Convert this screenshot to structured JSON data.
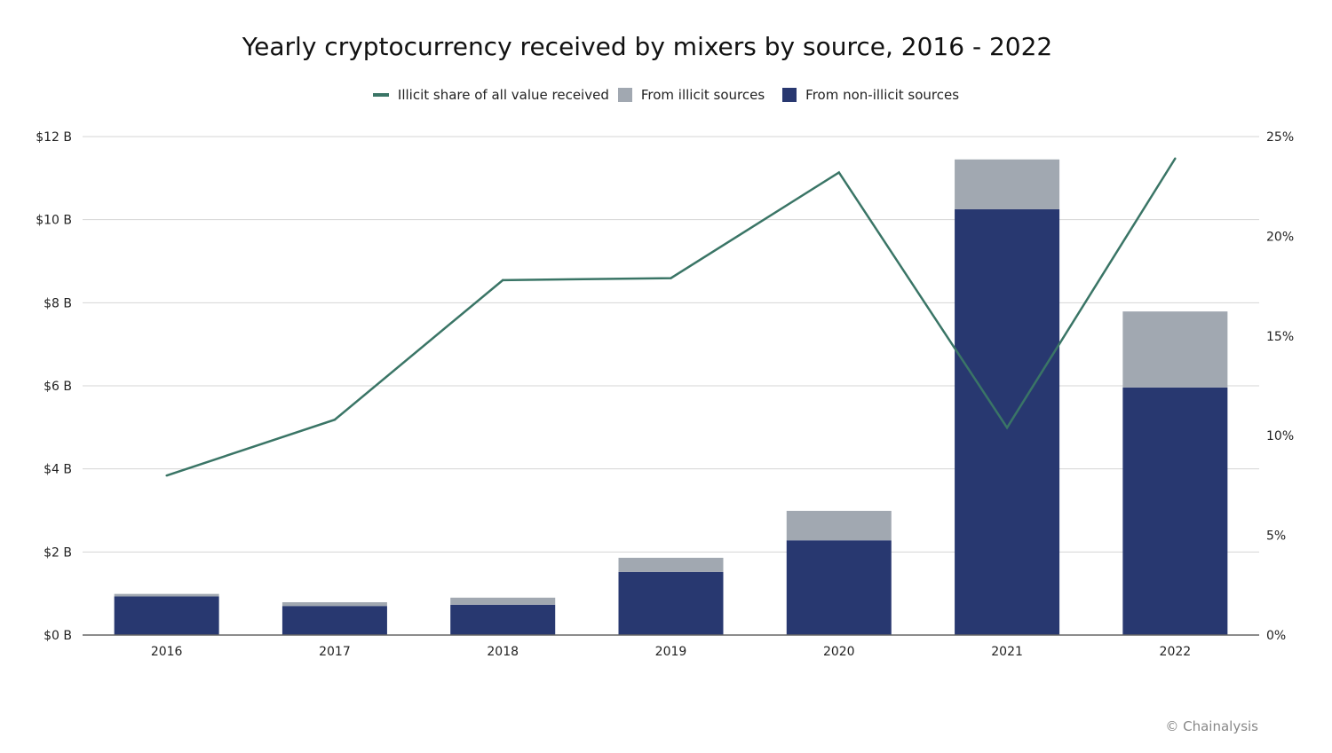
{
  "chart_data": {
    "type": "bar",
    "title": "Yearly cryptocurrency received by mixers by source, 2016 - 2022",
    "categories": [
      "2016",
      "2017",
      "2018",
      "2019",
      "2020",
      "2021",
      "2022"
    ],
    "series": [
      {
        "name": "From non-illicit sources",
        "type": "bar",
        "axis": "left",
        "color": "#283870",
        "values": [
          0.93,
          0.7,
          0.73,
          1.52,
          2.28,
          10.25,
          5.96
        ]
      },
      {
        "name": "From illicit sources",
        "type": "bar",
        "axis": "left",
        "color": "#a1a8b1",
        "values": [
          0.06,
          0.09,
          0.17,
          0.34,
          0.71,
          1.2,
          1.83
        ]
      },
      {
        "name": "Illicit share of all value received",
        "type": "line",
        "axis": "right",
        "color": "#3a7566",
        "values": [
          8.0,
          10.8,
          17.8,
          17.9,
          23.2,
          10.4,
          23.9
        ]
      }
    ],
    "stacked": true,
    "ylim": [
      0,
      12
    ],
    "yticks": [
      "$0 B",
      "$2 B",
      "$4 B",
      "$6 B",
      "$8 B",
      "$10 B",
      "$12 B"
    ],
    "y2lim": [
      0,
      25
    ],
    "y2ticks": [
      "0%",
      "5%",
      "10%",
      "15%",
      "20%",
      "25%"
    ],
    "grid": true,
    "legend": "top"
  },
  "credit": "© Chainalysis"
}
